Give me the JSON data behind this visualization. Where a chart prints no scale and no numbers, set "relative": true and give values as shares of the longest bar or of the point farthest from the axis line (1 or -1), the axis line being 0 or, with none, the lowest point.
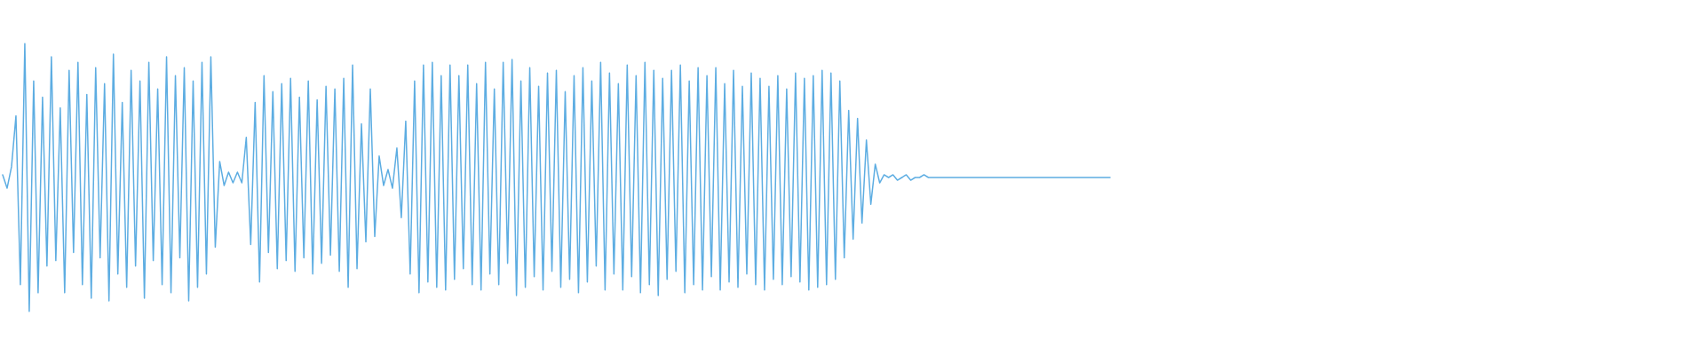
{
  "chart_data": {
    "type": "line",
    "relative": true,
    "color": "#5dade2",
    "categories": [
      null,
      null,
      null,
      null,
      null,
      null,
      null,
      null,
      null,
      null,
      null,
      null,
      null,
      null,
      null,
      null,
      null,
      null,
      null,
      null,
      null,
      null,
      null,
      null,
      null,
      null,
      null,
      null,
      null,
      null,
      null,
      null,
      null,
      null,
      null,
      null,
      null,
      null,
      null,
      null,
      null,
      null,
      null,
      null,
      null,
      null,
      null,
      null,
      null,
      null,
      null,
      null,
      null,
      null,
      null,
      null,
      null,
      null,
      null,
      null,
      null,
      null,
      null,
      null,
      null,
      null,
      null,
      null,
      null,
      null,
      null,
      null,
      null,
      null,
      null,
      null,
      null,
      null,
      null,
      null,
      null,
      null,
      null,
      null,
      null,
      null,
      null,
      null,
      null,
      null,
      null,
      null,
      null,
      null,
      null,
      null,
      null,
      null,
      null,
      null,
      null,
      null,
      null,
      null,
      null,
      null,
      null,
      null,
      null,
      null,
      null,
      null,
      null,
      null,
      null,
      null,
      null,
      null,
      null,
      null,
      null,
      null,
      null,
      null,
      null,
      null,
      null,
      null,
      null,
      null,
      null,
      null,
      null,
      null,
      null,
      null,
      null,
      null,
      null,
      null,
      null,
      null,
      null,
      null,
      null,
      null,
      null,
      null,
      null,
      null,
      null,
      null,
      null,
      null,
      null,
      null,
      null,
      null,
      null,
      null,
      null,
      null,
      null,
      null,
      null,
      null,
      null,
      null,
      null,
      null,
      null,
      null,
      null,
      null,
      null,
      null,
      null,
      null,
      null,
      null,
      null,
      null,
      null,
      null,
      null,
      null,
      null,
      null,
      null,
      null,
      null,
      null,
      null,
      null,
      null,
      null,
      null,
      null,
      null,
      null,
      null,
      null,
      null,
      null,
      null,
      null,
      null,
      null,
      null,
      null,
      null,
      null,
      null,
      null,
      null,
      null,
      null,
      null,
      null,
      null,
      null,
      null,
      null,
      null,
      null,
      null,
      null,
      null,
      null,
      null,
      null,
      null,
      null,
      null,
      null,
      null,
      null,
      null,
      null,
      null,
      null,
      null,
      null,
      null,
      null,
      null,
      null,
      null,
      null,
      null,
      null
    ],
    "values": [
      0.51,
      0.46,
      0.54,
      0.73,
      0.1,
      1,
      0,
      0.86,
      0.07,
      0.8,
      0.17,
      0.95,
      0.19,
      0.76,
      0.07,
      0.9,
      0.22,
      0.93,
      0.1,
      0.81,
      0.05,
      0.91,
      0.2,
      0.85,
      0.04,
      0.96,
      0.14,
      0.78,
      0.09,
      0.9,
      0.17,
      0.86,
      0.05,
      0.93,
      0.19,
      0.83,
      0.1,
      0.95,
      0.07,
      0.88,
      0.2,
      0.91,
      0.04,
      0.86,
      0.09,
      0.93,
      0.14,
      0.95,
      0.24,
      0.56,
      0.47,
      0.52,
      0.48,
      0.52,
      0.48,
      0.65,
      0.25,
      0.78,
      0.11,
      0.88,
      0.22,
      0.82,
      0.16,
      0.85,
      0.19,
      0.87,
      0.15,
      0.8,
      0.2,
      0.86,
      0.14,
      0.79,
      0.18,
      0.84,
      0.21,
      0.83,
      0.15,
      0.87,
      0.09,
      0.92,
      0.16,
      0.7,
      0.26,
      0.83,
      0.28,
      0.58,
      0.47,
      0.53,
      0.46,
      0.61,
      0.35,
      0.71,
      0.14,
      0.86,
      0.07,
      0.92,
      0.11,
      0.93,
      0.09,
      0.88,
      0.08,
      0.92,
      0.12,
      0.88,
      0.16,
      0.92,
      0.1,
      0.85,
      0.08,
      0.93,
      0.14,
      0.83,
      0.1,
      0.93,
      0.18,
      0.94,
      0.06,
      0.86,
      0.09,
      0.91,
      0.13,
      0.84,
      0.08,
      0.89,
      0.15,
      0.9,
      0.09,
      0.82,
      0.12,
      0.88,
      0.07,
      0.91,
      0.11,
      0.86,
      0.17,
      0.93,
      0.08,
      0.89,
      0.14,
      0.85,
      0.08,
      0.92,
      0.13,
      0.88,
      0.07,
      0.93,
      0.1,
      0.9,
      0.06,
      0.87,
      0.12,
      0.9,
      0.15,
      0.92,
      0.07,
      0.86,
      0.1,
      0.91,
      0.08,
      0.88,
      0.13,
      0.91,
      0.08,
      0.85,
      0.11,
      0.9,
      0.09,
      0.84,
      0.14,
      0.89,
      0.1,
      0.87,
      0.08,
      0.84,
      0.12,
      0.88,
      0.1,
      0.83,
      0.13,
      0.89,
      0.11,
      0.87,
      0.08,
      0.88,
      0.09,
      0.9,
      0.1,
      0.89,
      0.12,
      0.86,
      0.2,
      0.75,
      0.27,
      0.72,
      0.33,
      0.64,
      0.4,
      0.55,
      0.48,
      0.51,
      0.5,
      0.51,
      0.49,
      0.5,
      0.51,
      0.49,
      0.5,
      0.5,
      0.51,
      0.5,
      0.5,
      0.5,
      0.5,
      0.5,
      0.5,
      0.5,
      0.5,
      0.5,
      0.5,
      0.5,
      0.5,
      0.5,
      0.5,
      0.5,
      0.5,
      0.5,
      0.5,
      0.5,
      0.5,
      0.5,
      0.5,
      0.5,
      0.5,
      0.5,
      0.5,
      0.5,
      0.5,
      0.5,
      0.5,
      0.5,
      0.5,
      0.5,
      0.5,
      0.5,
      0.5,
      0.5,
      0.5,
      0.5,
      0.5,
      0.5,
      0.5
    ]
  }
}
